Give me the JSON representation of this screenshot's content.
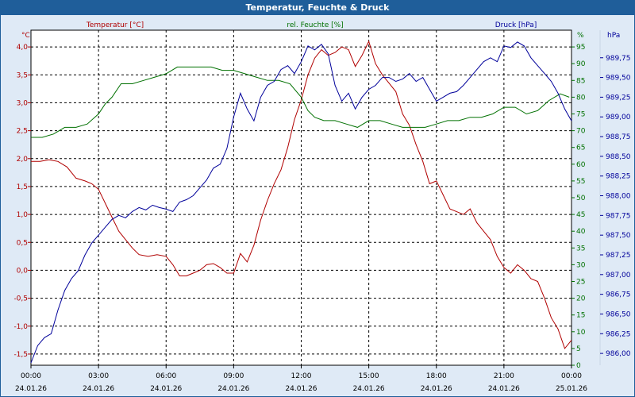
{
  "chart_data": {
    "type": "line",
    "title": "Temperatur, Feuchte & Druck",
    "x_ticks": [
      {
        "time": "00:00",
        "date": "24.01.26"
      },
      {
        "time": "03:00",
        "date": "24.01.26"
      },
      {
        "time": "06:00",
        "date": "24.01.26"
      },
      {
        "time": "09:00",
        "date": "24.01.26"
      },
      {
        "time": "12:00",
        "date": "24.01.26"
      },
      {
        "time": "15:00",
        "date": "24.01.26"
      },
      {
        "time": "18:00",
        "date": "24.01.26"
      },
      {
        "time": "21:00",
        "date": "24.01.26"
      },
      {
        "time": "00:00",
        "date": "25.01.26"
      }
    ],
    "x_range_hours": [
      0,
      24
    ],
    "axes": {
      "temperature": {
        "unit": "°C",
        "label": "Temperatur [°C]",
        "ylim": [
          -1.7,
          4.3
        ],
        "ticks": [
          "4,0",
          "3,5",
          "3,0",
          "2,5",
          "2,0",
          "1,5",
          "1,0",
          "0,5",
          "0,0",
          "-0,5",
          "-1,0",
          "-1,5"
        ],
        "tick_values": [
          4.0,
          3.5,
          3.0,
          2.5,
          2.0,
          1.5,
          1.0,
          0.5,
          0.0,
          -0.5,
          -1.0,
          -1.5
        ],
        "color": "#b00000"
      },
      "humidity": {
        "unit": "%",
        "label": "rel. Feuchte [%]",
        "ylim": [
          0,
          100
        ],
        "ticks": [
          "95",
          "90",
          "85",
          "80",
          "75",
          "70",
          "65",
          "60",
          "55",
          "50",
          "45",
          "40",
          "35",
          "30",
          "25",
          "20",
          "15",
          "10",
          "5",
          "0"
        ],
        "tick_values": [
          95,
          90,
          85,
          80,
          75,
          70,
          65,
          60,
          55,
          50,
          45,
          40,
          35,
          30,
          25,
          20,
          15,
          10,
          5,
          0
        ],
        "color": "#007000"
      },
      "pressure": {
        "unit": "hPa",
        "label": "Druck [hPa]",
        "ylim": [
          985.85,
          990.1
        ],
        "ticks": [
          "989,75",
          "989,50",
          "989,25",
          "989,00",
          "988,75",
          "988,50",
          "988,25",
          "988,00",
          "987,75",
          "987,50",
          "987,25",
          "987,00",
          "986,75",
          "986,50",
          "986,25",
          "986,00"
        ],
        "tick_values": [
          989.75,
          989.5,
          989.25,
          989.0,
          988.75,
          988.5,
          988.25,
          988.0,
          987.75,
          987.5,
          987.25,
          987.0,
          986.75,
          986.5,
          986.25,
          986.0
        ],
        "color": "#00009a"
      }
    },
    "series": [
      {
        "name": "Temperatur [°C]",
        "axis": "temperature",
        "color": "#b00000",
        "x": [
          0,
          0.4,
          0.8,
          1.2,
          1.6,
          2.0,
          2.4,
          2.7,
          3.0,
          3.3,
          3.6,
          3.9,
          4.2,
          4.5,
          4.8,
          5.2,
          5.6,
          6.0,
          6.3,
          6.6,
          6.9,
          7.2,
          7.5,
          7.8,
          8.1,
          8.4,
          8.7,
          9.0,
          9.3,
          9.6,
          9.9,
          10.2,
          10.5,
          10.8,
          11.1,
          11.4,
          11.7,
          12.0,
          12.3,
          12.6,
          12.9,
          13.2,
          13.5,
          13.8,
          14.1,
          14.4,
          14.7,
          15.0,
          15.3,
          15.6,
          15.9,
          16.2,
          16.5,
          16.8,
          17.1,
          17.4,
          17.7,
          18.0,
          18.3,
          18.6,
          18.9,
          19.2,
          19.5,
          19.8,
          20.1,
          20.4,
          20.7,
          21.0,
          21.3,
          21.6,
          21.9,
          22.2,
          22.5,
          22.8,
          23.1,
          23.4,
          23.7,
          24.0
        ],
        "values": [
          1.95,
          1.95,
          1.98,
          1.95,
          1.85,
          1.65,
          1.6,
          1.55,
          1.45,
          1.2,
          0.95,
          0.7,
          0.55,
          0.4,
          0.28,
          0.25,
          0.28,
          0.25,
          0.1,
          -0.1,
          -0.1,
          -0.05,
          0.0,
          0.1,
          0.12,
          0.05,
          -0.05,
          -0.05,
          0.3,
          0.15,
          0.45,
          0.9,
          1.25,
          1.55,
          1.8,
          2.2,
          2.7,
          3.05,
          3.5,
          3.8,
          3.95,
          3.85,
          3.9,
          4.0,
          3.95,
          3.65,
          3.85,
          4.1,
          3.7,
          3.5,
          3.35,
          3.2,
          2.8,
          2.6,
          2.25,
          1.95,
          1.55,
          1.6,
          1.35,
          1.1,
          1.05,
          1.0,
          1.1,
          0.85,
          0.7,
          0.55,
          0.25,
          0.05,
          -0.05,
          0.1,
          0.0,
          -0.15,
          -0.2,
          -0.5,
          -0.85,
          -1.05,
          -1.4,
          -1.25
        ]
      },
      {
        "name": "rel. Feuchte [%]",
        "axis": "humidity",
        "color": "#007000",
        "x": [
          0,
          0.5,
          1.0,
          1.5,
          2.0,
          2.5,
          3.0,
          3.3,
          3.6,
          4.0,
          4.5,
          5.0,
          5.5,
          6.0,
          6.5,
          7.0,
          7.5,
          8.0,
          8.5,
          9.0,
          9.5,
          10.0,
          10.5,
          11.0,
          11.5,
          12.0,
          12.3,
          12.6,
          13.0,
          13.5,
          14.0,
          14.5,
          15.0,
          15.5,
          16.0,
          16.5,
          17.0,
          17.5,
          18.0,
          18.5,
          19.0,
          19.5,
          20.0,
          20.5,
          21.0,
          21.5,
          22.0,
          22.5,
          23.0,
          23.5,
          23.9
        ],
        "values": [
          68,
          68,
          69,
          71,
          71,
          72,
          75,
          78,
          80,
          84,
          84,
          85,
          86,
          87,
          89,
          89,
          89,
          89,
          88,
          88,
          87,
          86,
          85,
          85,
          84,
          80,
          76,
          74,
          73,
          73,
          72,
          71,
          73,
          73,
          72,
          71,
          71,
          71,
          72,
          73,
          73,
          74,
          74,
          75,
          77,
          77,
          75,
          76,
          79,
          81,
          80
        ]
      },
      {
        "name": "Druck [hPa]",
        "axis": "pressure",
        "color": "#00009a",
        "x": [
          0,
          0.3,
          0.6,
          0.9,
          1.2,
          1.5,
          1.8,
          2.1,
          2.4,
          2.7,
          3.0,
          3.3,
          3.6,
          3.9,
          4.2,
          4.5,
          4.8,
          5.1,
          5.4,
          5.7,
          6.0,
          6.3,
          6.6,
          6.9,
          7.2,
          7.5,
          7.8,
          8.1,
          8.4,
          8.7,
          9.0,
          9.3,
          9.6,
          9.9,
          10.2,
          10.5,
          10.8,
          11.1,
          11.4,
          11.7,
          12.0,
          12.3,
          12.6,
          12.9,
          13.2,
          13.5,
          13.8,
          14.1,
          14.4,
          14.7,
          15.0,
          15.3,
          15.6,
          15.9,
          16.2,
          16.5,
          16.8,
          17.1,
          17.4,
          17.7,
          18.0,
          18.3,
          18.6,
          18.9,
          19.2,
          19.5,
          19.8,
          20.1,
          20.4,
          20.7,
          21.0,
          21.3,
          21.6,
          21.9,
          22.2,
          22.5,
          22.8,
          23.1,
          23.4,
          23.7,
          24.0
        ],
        "values": [
          985.88,
          986.1,
          986.2,
          986.25,
          986.55,
          986.8,
          986.95,
          987.05,
          987.25,
          987.4,
          987.5,
          987.6,
          987.7,
          987.75,
          987.72,
          987.8,
          987.85,
          987.82,
          987.88,
          987.85,
          987.83,
          987.8,
          987.92,
          987.95,
          988.0,
          988.1,
          988.2,
          988.35,
          988.4,
          988.6,
          989.0,
          989.3,
          989.1,
          988.95,
          989.25,
          989.4,
          989.45,
          989.6,
          989.65,
          989.55,
          989.7,
          989.9,
          989.85,
          989.92,
          989.8,
          989.4,
          989.2,
          989.3,
          989.1,
          989.25,
          989.35,
          989.4,
          989.5,
          989.5,
          989.45,
          989.48,
          989.55,
          989.45,
          989.5,
          989.35,
          989.2,
          989.25,
          989.3,
          989.32,
          989.4,
          989.5,
          989.6,
          989.7,
          989.75,
          989.7,
          989.9,
          989.88,
          989.95,
          989.9,
          989.75,
          989.65,
          989.55,
          989.45,
          989.3,
          989.1,
          988.95
        ]
      }
    ],
    "grid": true
  }
}
